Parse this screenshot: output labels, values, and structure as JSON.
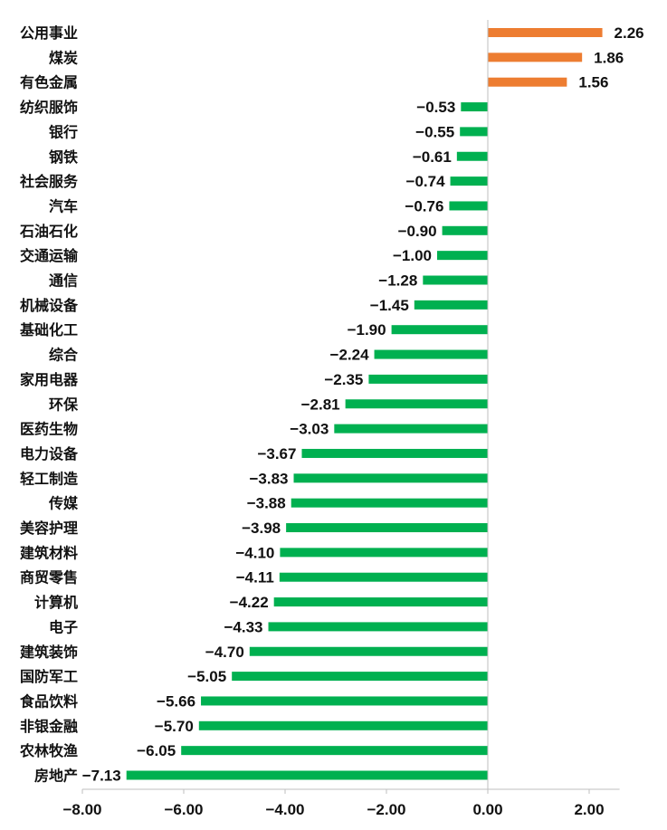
{
  "chart_data": {
    "type": "bar",
    "orientation": "horizontal",
    "title": "",
    "xlabel": "",
    "ylabel": "",
    "xlim": [
      -8,
      2.6
    ],
    "ticks": [
      -8,
      -6,
      -4,
      -2,
      0,
      2
    ],
    "tick_labels": [
      "−8.00",
      "−6.00",
      "−4.00",
      "−2.00",
      "0.00",
      "2.00"
    ],
    "grid": false,
    "legend": "none",
    "colors": {
      "positive": "#ED7D31",
      "negative": "#00B050",
      "axis": "#BFBFBF"
    },
    "categories": [
      "公用事业",
      "煤炭",
      "有色金属",
      "纺织服饰",
      "银行",
      "钢铁",
      "社会服务",
      "汽车",
      "石油石化",
      "交通运输",
      "通信",
      "机械设备",
      "基础化工",
      "综合",
      "家用电器",
      "环保",
      "医药生物",
      "电力设备",
      "轻工制造",
      "传媒",
      "美容护理",
      "建筑材料",
      "商贸零售",
      "计算机",
      "电子",
      "建筑装饰",
      "国防军工",
      "食品饮料",
      "非银金融",
      "农林牧渔",
      "房地产"
    ],
    "values": [
      2.26,
      1.86,
      1.56,
      -0.53,
      -0.55,
      -0.61,
      -0.74,
      -0.76,
      -0.9,
      -1.0,
      -1.28,
      -1.45,
      -1.9,
      -2.24,
      -2.35,
      -2.81,
      -3.03,
      -3.67,
      -3.83,
      -3.88,
      -3.98,
      -4.1,
      -4.11,
      -4.22,
      -4.33,
      -4.7,
      -5.05,
      -5.66,
      -5.7,
      -6.05,
      -7.13
    ],
    "value_labels": [
      "2.26",
      "1.86",
      "1.56",
      "−0.53",
      "−0.55",
      "−0.61",
      "−0.74",
      "−0.76",
      "−0.90",
      "−1.00",
      "−1.28",
      "−1.45",
      "−1.90",
      "−2.24",
      "−2.35",
      "−2.81",
      "−3.03",
      "−3.67",
      "−3.83",
      "−3.88",
      "−3.98",
      "−4.10",
      "−4.11",
      "−4.22",
      "−4.33",
      "−4.70",
      "−5.05",
      "−5.66",
      "−5.70",
      "−6.05",
      "−7.13"
    ]
  }
}
